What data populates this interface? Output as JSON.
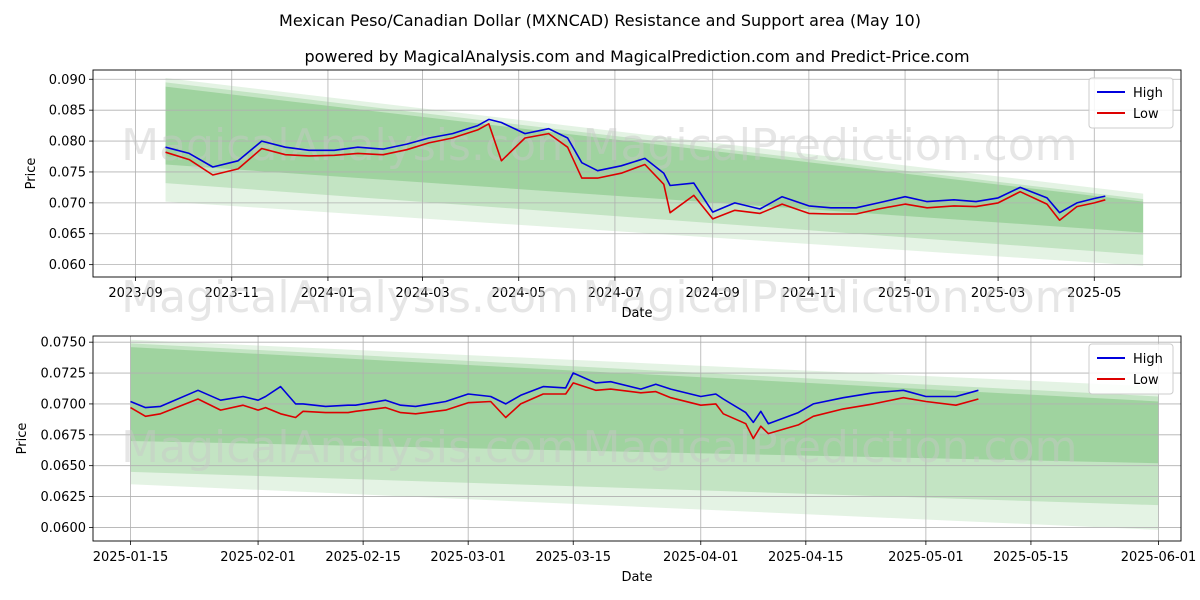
{
  "title": "Mexican Peso/Canadian Dollar (MXNCAD) Resistance and Support area (May 10)",
  "subtitle": "powered by MagicalAnalysis.com and MagicalPrediction.com and Predict-Price.com",
  "watermarks": [
    "MagicalAnalysis.com",
    "MagicalPrediction.com"
  ],
  "colors": {
    "high": "#0000dd",
    "low": "#dd0000",
    "band": "#2ca02c",
    "grid": "#b0b0b0"
  },
  "chart_data": [
    {
      "type": "line",
      "xlabel": "Date",
      "ylabel": "Price",
      "x_ticks": [
        "2023-09",
        "2023-11",
        "2024-01",
        "2024-03",
        "2024-05",
        "2024-07",
        "2024-09",
        "2024-11",
        "2025-01",
        "2025-03",
        "2025-05"
      ],
      "xlim": [
        "2023-08-05",
        "2025-06-25"
      ],
      "y_ticks": [
        "0.060",
        "0.065",
        "0.070",
        "0.075",
        "0.080",
        "0.085",
        "0.090"
      ],
      "ylim": [
        0.058,
        0.0915
      ],
      "grid": true,
      "legend": "top-right",
      "bands": [
        {
          "start": {
            "x": "2023-09-20",
            "top": 0.0902,
            "bottom": 0.0702
          },
          "end": {
            "x": "2025-06-01",
            "top": 0.0715,
            "bottom": 0.0598
          },
          "opacity": 0.13
        },
        {
          "start": {
            "x": "2023-09-20",
            "top": 0.0895,
            "bottom": 0.0732
          },
          "end": {
            "x": "2025-06-01",
            "top": 0.0706,
            "bottom": 0.0616
          },
          "opacity": 0.18
        },
        {
          "start": {
            "x": "2023-09-20",
            "top": 0.0888,
            "bottom": 0.0762
          },
          "end": {
            "x": "2025-06-01",
            "top": 0.0702,
            "bottom": 0.0652
          },
          "opacity": 0.24
        }
      ],
      "x": [
        "2023-09-20",
        "2023-10-05",
        "2023-10-20",
        "2023-11-05",
        "2023-11-20",
        "2023-12-05",
        "2023-12-20",
        "2024-01-05",
        "2024-01-20",
        "2024-02-05",
        "2024-02-20",
        "2024-03-05",
        "2024-03-20",
        "2024-04-05",
        "2024-04-12",
        "2024-04-20",
        "2024-05-05",
        "2024-05-20",
        "2024-06-01",
        "2024-06-10",
        "2024-06-20",
        "2024-07-05",
        "2024-07-20",
        "2024-08-01",
        "2024-08-05",
        "2024-08-20",
        "2024-09-01",
        "2024-09-15",
        "2024-10-01",
        "2024-10-15",
        "2024-11-01",
        "2024-11-15",
        "2024-12-01",
        "2024-12-15",
        "2025-01-01",
        "2025-01-15",
        "2025-02-01",
        "2025-02-15",
        "2025-03-01",
        "2025-03-15",
        "2025-04-01",
        "2025-04-09",
        "2025-04-20",
        "2025-05-01",
        "2025-05-08"
      ],
      "series": [
        {
          "name": "High",
          "values": [
            0.079,
            0.078,
            0.0758,
            0.0768,
            0.08,
            0.079,
            0.0785,
            0.0785,
            0.079,
            0.0787,
            0.0795,
            0.0805,
            0.0812,
            0.0825,
            0.0835,
            0.083,
            0.0812,
            0.082,
            0.0805,
            0.0765,
            0.0752,
            0.076,
            0.0772,
            0.0748,
            0.0728,
            0.0732,
            0.0685,
            0.07,
            0.069,
            0.071,
            0.0695,
            0.0692,
            0.0692,
            0.07,
            0.071,
            0.0702,
            0.0705,
            0.0702,
            0.0708,
            0.0725,
            0.0708,
            0.0684,
            0.07,
            0.0707,
            0.0711
          ]
        },
        {
          "name": "Low",
          "values": [
            0.0782,
            0.077,
            0.0745,
            0.0755,
            0.0788,
            0.0778,
            0.0776,
            0.0777,
            0.078,
            0.0778,
            0.0786,
            0.0797,
            0.0805,
            0.0818,
            0.0828,
            0.0768,
            0.0805,
            0.0812,
            0.079,
            0.074,
            0.074,
            0.0748,
            0.0762,
            0.073,
            0.0684,
            0.0712,
            0.0674,
            0.0688,
            0.0683,
            0.0698,
            0.0683,
            0.0682,
            0.0682,
            0.069,
            0.0698,
            0.0692,
            0.0695,
            0.0694,
            0.07,
            0.0718,
            0.0698,
            0.0672,
            0.0694,
            0.07,
            0.0705
          ]
        }
      ]
    },
    {
      "type": "line",
      "xlabel": "Date",
      "ylabel": "Price",
      "x_ticks": [
        "2025-01-15",
        "2025-02-01",
        "2025-02-15",
        "2025-03-01",
        "2025-03-15",
        "2025-04-01",
        "2025-04-15",
        "2025-05-01",
        "2025-05-15",
        "2025-06-01"
      ],
      "xlim": [
        "2025-01-10",
        "2025-06-04"
      ],
      "y_ticks": [
        "0.0600",
        "0.0625",
        "0.0650",
        "0.0675",
        "0.0700",
        "0.0725",
        "0.0750"
      ],
      "ylim": [
        0.0589,
        0.0755
      ],
      "grid": true,
      "legend": "top-right",
      "bands": [
        {
          "start": {
            "x": "2025-01-15",
            "top": 0.0752,
            "bottom": 0.0635
          },
          "end": {
            "x": "2025-06-01",
            "top": 0.0714,
            "bottom": 0.0598
          },
          "opacity": 0.13
        },
        {
          "start": {
            "x": "2025-01-15",
            "top": 0.0749,
            "bottom": 0.0645
          },
          "end": {
            "x": "2025-06-01",
            "top": 0.0706,
            "bottom": 0.0618
          },
          "opacity": 0.18
        },
        {
          "start": {
            "x": "2025-01-15",
            "top": 0.0746,
            "bottom": 0.067
          },
          "end": {
            "x": "2025-06-01",
            "top": 0.0702,
            "bottom": 0.0652
          },
          "opacity": 0.24
        }
      ],
      "x": [
        "2025-01-15",
        "2025-01-17",
        "2025-01-19",
        "2025-01-24",
        "2025-01-27",
        "2025-01-30",
        "2025-02-01",
        "2025-02-02",
        "2025-02-04",
        "2025-02-06",
        "2025-02-07",
        "2025-02-10",
        "2025-02-13",
        "2025-02-14",
        "2025-02-18",
        "2025-02-20",
        "2025-02-22",
        "2025-02-26",
        "2025-03-01",
        "2025-03-04",
        "2025-03-06",
        "2025-03-08",
        "2025-03-11",
        "2025-03-14",
        "2025-03-15",
        "2025-03-18",
        "2025-03-20",
        "2025-03-24",
        "2025-03-26",
        "2025-03-28",
        "2025-04-01",
        "2025-04-03",
        "2025-04-04",
        "2025-04-07",
        "2025-04-08",
        "2025-04-09",
        "2025-04-10",
        "2025-04-14",
        "2025-04-16",
        "2025-04-20",
        "2025-04-24",
        "2025-04-28",
        "2025-05-01",
        "2025-05-05",
        "2025-05-08"
      ],
      "series": [
        {
          "name": "High",
          "values": [
            0.0702,
            0.0697,
            0.0698,
            0.0711,
            0.0703,
            0.0706,
            0.0703,
            0.0706,
            0.0714,
            0.07,
            0.07,
            0.0698,
            0.0699,
            0.0699,
            0.0703,
            0.0699,
            0.0698,
            0.0702,
            0.0708,
            0.0706,
            0.07,
            0.0707,
            0.0714,
            0.0713,
            0.0725,
            0.0717,
            0.0718,
            0.0712,
            0.0716,
            0.0712,
            0.0706,
            0.0708,
            0.0704,
            0.0693,
            0.0685,
            0.0694,
            0.0684,
            0.0693,
            0.07,
            0.0705,
            0.0709,
            0.0711,
            0.0706,
            0.0706,
            0.0711
          ]
        },
        {
          "name": "Low",
          "values": [
            0.0697,
            0.069,
            0.0692,
            0.0704,
            0.0695,
            0.0699,
            0.0695,
            0.0697,
            0.0692,
            0.0689,
            0.0694,
            0.0693,
            0.0693,
            0.0694,
            0.0697,
            0.0693,
            0.0692,
            0.0695,
            0.0701,
            0.0702,
            0.0689,
            0.07,
            0.0708,
            0.0708,
            0.0717,
            0.0711,
            0.0712,
            0.0709,
            0.071,
            0.0705,
            0.0699,
            0.07,
            0.0692,
            0.0684,
            0.0672,
            0.0682,
            0.0676,
            0.0683,
            0.069,
            0.0696,
            0.07,
            0.0705,
            0.0702,
            0.0699,
            0.0704
          ]
        }
      ]
    }
  ]
}
